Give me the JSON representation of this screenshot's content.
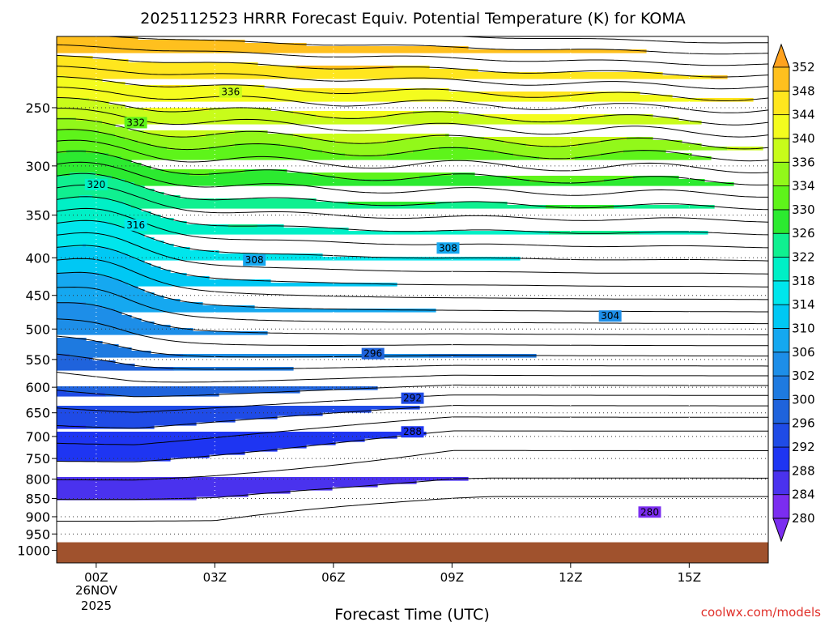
{
  "chart_data": {
    "type": "contour",
    "title": "2025112523 HRRR Forecast Equiv. Potential Temperature (K) for KOMA",
    "xlabel": "Forecast Time (UTC)",
    "ylabel": "",
    "x_ticks": [
      {
        "hour": 0,
        "label": "00Z"
      },
      {
        "hour": 3,
        "label": "03Z"
      },
      {
        "hour": 6,
        "label": "06Z"
      },
      {
        "hour": 9,
        "label": "09Z"
      },
      {
        "hour": 12,
        "label": "12Z"
      },
      {
        "hour": 15,
        "label": "15Z"
      }
    ],
    "x_date_label": [
      "26NOV",
      "2025"
    ],
    "xlim": [
      -1,
      17
    ],
    "y_ticks": [
      250,
      300,
      350,
      400,
      450,
      500,
      550,
      600,
      650,
      700,
      750,
      800,
      850,
      900,
      950,
      1000
    ],
    "ylim": [
      1040,
      200
    ],
    "y_scale": "log",
    "surface_pressure_hpa": 975,
    "colorbar": {
      "levels": [
        280,
        284,
        288,
        292,
        296,
        300,
        302,
        306,
        310,
        314,
        318,
        322,
        326,
        330,
        334,
        336,
        340,
        344,
        348,
        352
      ],
      "colors": [
        "#7b2df0",
        "#4a32ee",
        "#1e35f2",
        "#1f4be6",
        "#1f63dc",
        "#1e7ae0",
        "#1d8ee8",
        "#15a8f0",
        "#00c8f4",
        "#00e6ec",
        "#00f0c6",
        "#10f090",
        "#2cea30",
        "#5ef41a",
        "#92f81a",
        "#c8fc1a",
        "#f4fc1e",
        "#ffe61e",
        "#ffc01e",
        "#ffa21e"
      ],
      "extend": "both"
    },
    "contour_labels": [
      {
        "text": "336",
        "hour": 3.4,
        "p": 238
      },
      {
        "text": "332",
        "hour": 1.0,
        "p": 262
      },
      {
        "text": "320",
        "hour": 0.0,
        "p": 318
      },
      {
        "text": "316",
        "hour": 1.0,
        "p": 361
      },
      {
        "text": "308",
        "hour": 4.0,
        "p": 403
      },
      {
        "text": "308",
        "hour": 8.9,
        "p": 388
      },
      {
        "text": "304",
        "hour": 13.0,
        "p": 480
      },
      {
        "text": "296",
        "hour": 7.0,
        "p": 540
      },
      {
        "text": "292",
        "hour": 8.0,
        "p": 621
      },
      {
        "text": "288",
        "hour": 8.0,
        "p": 690
      },
      {
        "text": "280",
        "hour": 14.0,
        "p": 887
      }
    ],
    "grid": true,
    "legend": "colorbar-right"
  },
  "credit": "coolwx.com/models"
}
